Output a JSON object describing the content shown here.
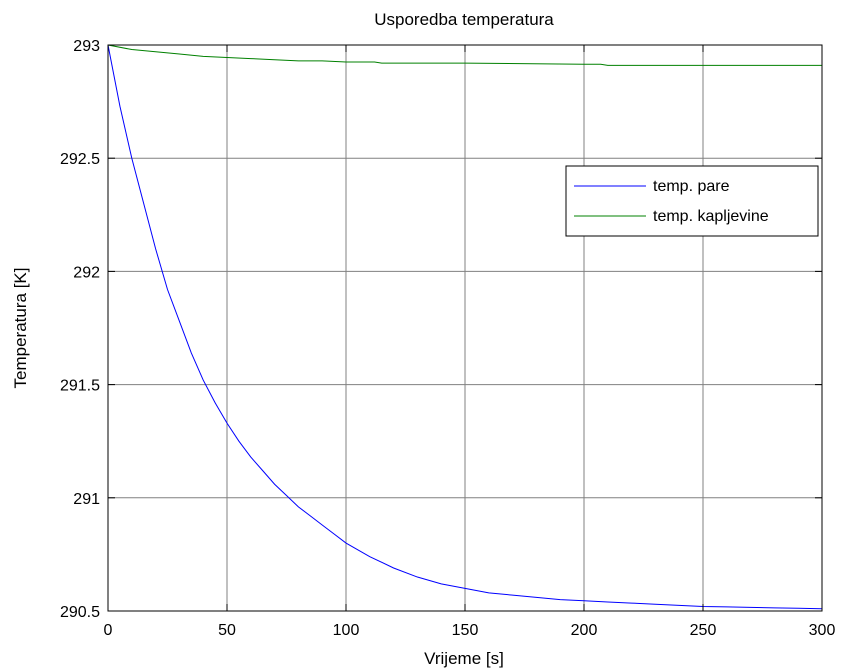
{
  "chart_data": {
    "type": "line",
    "title": "Usporedba temperatura",
    "xlabel": "Vrijeme [s]",
    "ylabel": "Temperatura [K]",
    "xlim": [
      0,
      300
    ],
    "ylim": [
      290.5,
      293
    ],
    "xticks": [
      0,
      50,
      100,
      150,
      200,
      250,
      300
    ],
    "xtick_labels": [
      "0",
      "50",
      "100",
      "150",
      "200",
      "250",
      "300"
    ],
    "yticks": [
      290.5,
      291,
      291.5,
      292,
      292.5,
      293
    ],
    "ytick_labels": [
      "290.5",
      "291",
      "291.5",
      "292",
      "292.5",
      "293"
    ],
    "grid": true,
    "legend_position": "top-right",
    "series": [
      {
        "name": "temp. pare",
        "color": "#0000ff",
        "x": [
          0,
          5,
          10,
          15,
          20,
          25,
          30,
          35,
          40,
          45,
          50,
          55,
          60,
          65,
          70,
          75,
          80,
          85,
          90,
          95,
          100,
          110,
          120,
          130,
          140,
          150,
          160,
          170,
          180,
          190,
          200,
          210,
          220,
          230,
          240,
          250,
          260,
          270,
          280,
          290,
          300
        ],
        "y": [
          293.0,
          292.73,
          292.5,
          292.3,
          292.1,
          291.92,
          291.78,
          291.64,
          291.52,
          291.42,
          291.33,
          291.25,
          291.18,
          291.12,
          291.06,
          291.01,
          290.96,
          290.92,
          290.88,
          290.84,
          290.8,
          290.74,
          290.69,
          290.65,
          290.62,
          290.6,
          290.58,
          290.57,
          290.56,
          290.55,
          290.545,
          290.54,
          290.535,
          290.53,
          290.525,
          290.52,
          290.518,
          290.516,
          290.514,
          290.512,
          290.51
        ]
      },
      {
        "name": "temp. kapljevine",
        "color": "#008000",
        "x": [
          0,
          10,
          20,
          30,
          40,
          50,
          60,
          70,
          80,
          90,
          100,
          112,
          115,
          150,
          200,
          207,
          210,
          250,
          300
        ],
        "y": [
          293.0,
          292.98,
          292.97,
          292.96,
          292.95,
          292.945,
          292.94,
          292.935,
          292.93,
          292.93,
          292.925,
          292.925,
          292.92,
          292.92,
          292.915,
          292.915,
          292.91,
          292.91,
          292.91
        ]
      }
    ]
  }
}
